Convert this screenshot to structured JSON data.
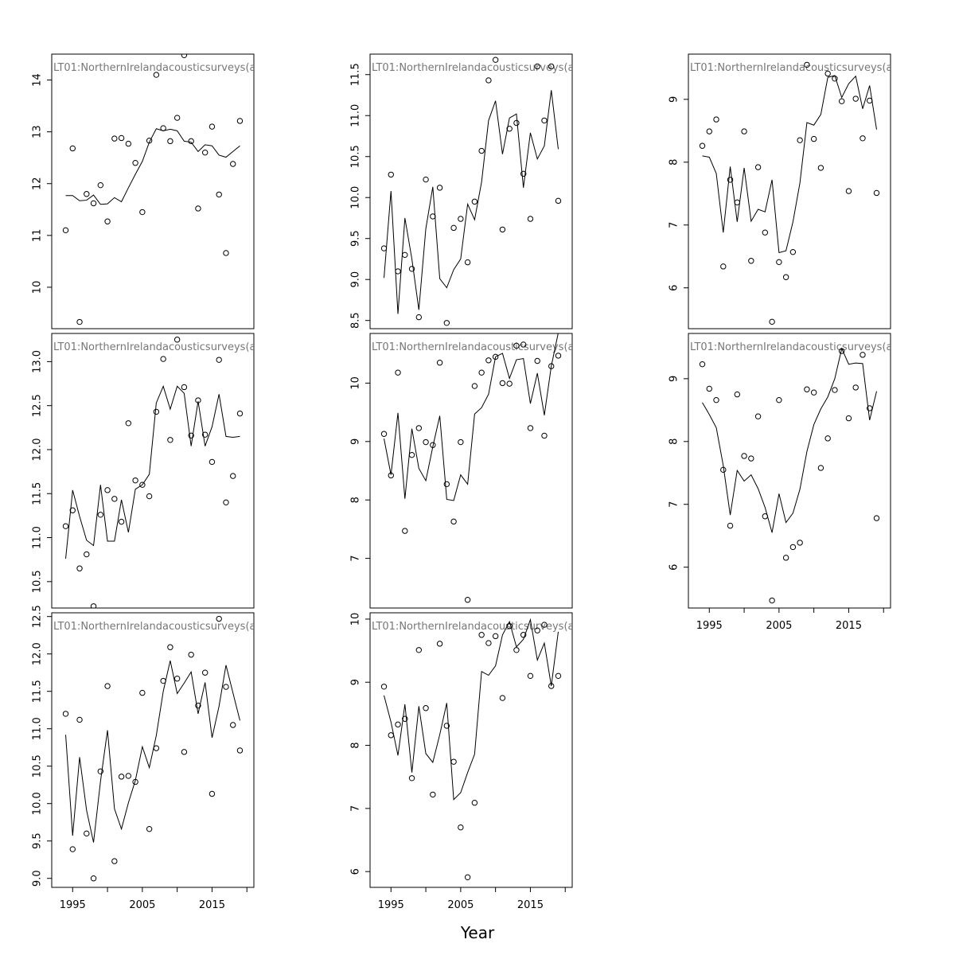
{
  "figure": {
    "xlabel": "Year"
  },
  "chart_data": [
    {
      "type": "scatter",
      "panel_title": "LT01:NorthernIrelandacousticsurveys(a",
      "xlim": [
        1992,
        2021
      ],
      "ylim": [
        9.2,
        14.5
      ],
      "yticks": [
        "10",
        "11",
        "12",
        "13",
        "14"
      ],
      "xticks": [],
      "years": [
        1994,
        1995,
        1996,
        1997,
        1998,
        1999,
        2000,
        2001,
        2002,
        2003,
        2004,
        2005,
        2006,
        2007,
        2008,
        2009,
        2010,
        2011,
        2012,
        2013,
        2014,
        2015,
        2016,
        2017,
        2018,
        2019
      ],
      "observed": [
        11.1,
        12.68,
        9.33,
        11.8,
        11.62,
        11.97,
        11.27,
        12.87,
        12.88,
        12.77,
        12.4,
        11.45,
        12.83,
        14.1,
        13.07,
        12.82,
        13.27,
        14.48,
        12.82,
        11.52,
        12.6,
        13.1,
        11.79,
        10.66,
        12.38,
        13.21
      ],
      "fitted": [
        11.77,
        11.77,
        11.67,
        11.68,
        11.78,
        11.6,
        11.61,
        11.73,
        11.65,
        11.92,
        12.18,
        12.43,
        12.8,
        13.06,
        13.02,
        13.05,
        13.02,
        12.82,
        12.8,
        12.62,
        12.75,
        12.73,
        12.55,
        12.51,
        12.62,
        12.73
      ]
    },
    {
      "type": "scatter",
      "panel_title": "LT01:NorthernIrelandacousticsurveys(a",
      "xlim": [
        1992,
        2021
      ],
      "ylim": [
        8.4,
        11.75
      ],
      "yticks": [
        "8.5",
        "9.0",
        "9.5",
        "10.0",
        "10.5",
        "11.0",
        "11.5"
      ],
      "xticks": [],
      "years": [
        1994,
        1995,
        1996,
        1997,
        1998,
        1999,
        2000,
        2001,
        2002,
        2003,
        2004,
        2005,
        2006,
        2007,
        2008,
        2009,
        2010,
        2011,
        2012,
        2013,
        2014,
        2015,
        2016,
        2017,
        2018,
        2019
      ],
      "observed": [
        9.38,
        10.28,
        9.1,
        9.3,
        9.13,
        8.54,
        10.22,
        9.77,
        10.12,
        8.47,
        9.63,
        9.74,
        9.21,
        9.95,
        10.57,
        11.43,
        11.68,
        9.61,
        10.84,
        10.91,
        10.29,
        9.74,
        11.6,
        10.94,
        11.6,
        9.96
      ],
      "fitted": [
        9.02,
        10.08,
        8.58,
        9.75,
        9.25,
        8.63,
        9.62,
        10.13,
        9.01,
        8.9,
        9.12,
        9.25,
        9.92,
        9.73,
        10.19,
        10.94,
        11.18,
        10.53,
        10.97,
        11.02,
        10.12,
        10.79,
        10.47,
        10.63,
        11.31,
        10.59
      ]
    },
    {
      "type": "scatter",
      "panel_title": "LT01:NorthernIrelandacousticsurveys(a",
      "xlim": [
        1992,
        2021
      ],
      "ylim": [
        5.35,
        9.72
      ],
      "yticks": [
        "6",
        "7",
        "8",
        "9"
      ],
      "xticks": [],
      "years": [
        1994,
        1995,
        1996,
        1997,
        1998,
        1999,
        2000,
        2001,
        2002,
        2003,
        2004,
        2005,
        2006,
        2007,
        2008,
        2009,
        2010,
        2011,
        2012,
        2013,
        2014,
        2015,
        2016,
        2017,
        2018,
        2019
      ],
      "observed": [
        8.26,
        8.49,
        8.68,
        6.34,
        7.72,
        7.36,
        8.49,
        6.43,
        7.92,
        6.88,
        5.46,
        6.41,
        6.17,
        6.57,
        8.35,
        9.55,
        8.37,
        7.91,
        9.41,
        9.33,
        8.97,
        7.54,
        9.01,
        8.38,
        8.98,
        7.51
      ],
      "fitted": [
        8.1,
        8.08,
        7.82,
        6.88,
        7.93,
        7.05,
        7.91,
        7.06,
        7.25,
        7.21,
        7.72,
        6.56,
        6.59,
        7.05,
        7.67,
        8.63,
        8.59,
        8.76,
        9.35,
        9.38,
        9.03,
        9.25,
        9.37,
        8.85,
        9.22,
        8.52
      ]
    },
    {
      "type": "scatter",
      "panel_title": "LT01:NorthernIrelandacousticsurveys(a",
      "xlim": [
        1992,
        2021
      ],
      "ylim": [
        10.2,
        13.32
      ],
      "yticks": [
        "10.5",
        "11.0",
        "11.5",
        "12.0",
        "12.5",
        "13.0"
      ],
      "xticks": [],
      "years": [
        1994,
        1995,
        1996,
        1997,
        1998,
        1999,
        2000,
        2001,
        2002,
        2003,
        2004,
        2005,
        2006,
        2007,
        2008,
        2009,
        2010,
        2011,
        2012,
        2013,
        2014,
        2015,
        2016,
        2017,
        2018,
        2019
      ],
      "observed": [
        11.13,
        11.31,
        10.65,
        10.81,
        10.22,
        11.26,
        11.54,
        11.44,
        11.18,
        12.3,
        11.65,
        11.6,
        11.47,
        12.43,
        13.03,
        12.11,
        13.25,
        12.71,
        12.16,
        12.56,
        12.17,
        11.86,
        13.02,
        11.4,
        11.7,
        12.41
      ],
      "fitted": [
        10.76,
        11.54,
        11.24,
        10.97,
        10.91,
        11.6,
        10.96,
        10.96,
        11.43,
        11.06,
        11.55,
        11.6,
        11.72,
        12.53,
        12.72,
        12.46,
        12.72,
        12.64,
        12.04,
        12.55,
        12.04,
        12.26,
        12.63,
        12.15,
        12.14,
        12.15
      ]
    },
    {
      "type": "scatter",
      "panel_title": "LT01:NorthernIrelandacousticsurveys(a",
      "xlim": [
        1992,
        2021
      ],
      "ylim": [
        6.15,
        10.85
      ],
      "yticks": [
        "7",
        "8",
        "9",
        "10"
      ],
      "xticks": [],
      "years": [
        1994,
        1995,
        1996,
        1997,
        1998,
        1999,
        2000,
        2001,
        2002,
        2003,
        2004,
        2005,
        2006,
        2007,
        2008,
        2009,
        2010,
        2011,
        2012,
        2013,
        2014,
        2015,
        2016,
        2017,
        2018,
        2019
      ],
      "observed": [
        9.13,
        8.42,
        10.18,
        7.47,
        8.77,
        9.23,
        8.99,
        8.94,
        10.35,
        8.27,
        7.63,
        8.99,
        6.29,
        9.95,
        10.18,
        10.39,
        10.45,
        10.0,
        9.99,
        10.64,
        10.66,
        9.23,
        10.38,
        9.1,
        10.29,
        10.47
      ],
      "fitted": [
        9.05,
        8.43,
        9.49,
        8.02,
        9.22,
        8.54,
        8.33,
        8.91,
        9.44,
        8.01,
        7.99,
        8.43,
        8.27,
        9.47,
        9.58,
        9.81,
        10.45,
        10.51,
        10.08,
        10.4,
        10.42,
        9.65,
        10.17,
        9.45,
        10.29,
        10.86
      ]
    },
    {
      "type": "scatter",
      "panel_title": "LT01:NorthernIrelandacousticsurveys(a",
      "xlim": [
        1992,
        2021
      ],
      "ylim": [
        5.35,
        9.72
      ],
      "yticks": [
        "6",
        "7",
        "8",
        "9"
      ],
      "xticks": [
        "1995",
        "2005",
        "2015"
      ],
      "years": [
        1994,
        1995,
        1996,
        1997,
        1998,
        1999,
        2000,
        2001,
        2002,
        2003,
        2004,
        2005,
        2006,
        2007,
        2008,
        2009,
        2010,
        2011,
        2012,
        2013,
        2014,
        2015,
        2016,
        2017,
        2018,
        2019
      ],
      "observed": [
        9.23,
        8.84,
        8.66,
        7.55,
        6.66,
        8.75,
        7.77,
        7.73,
        8.4,
        6.81,
        5.47,
        8.66,
        6.15,
        6.32,
        6.39,
        8.83,
        8.78,
        7.58,
        8.05,
        8.82,
        9.44,
        8.37,
        8.86,
        9.38,
        8.53,
        6.78
      ],
      "fitted": [
        8.62,
        8.43,
        8.22,
        7.62,
        6.83,
        7.54,
        7.37,
        7.47,
        7.25,
        6.95,
        6.55,
        7.17,
        6.71,
        6.86,
        7.24,
        7.84,
        8.27,
        8.52,
        8.71,
        9.0,
        9.48,
        9.23,
        9.25,
        9.24,
        8.34,
        8.8
      ]
    },
    {
      "type": "scatter",
      "panel_title": "LT01:NorthernIrelandacousticsurveys(a",
      "xlim": [
        1992,
        2021
      ],
      "ylim": [
        8.88,
        12.55
      ],
      "yticks": [
        "9.0",
        "9.5",
        "10.0",
        "10.5",
        "11.0",
        "11.5",
        "12.0",
        "12.5"
      ],
      "xticks": [
        "1995",
        "2005",
        "2015"
      ],
      "years": [
        1994,
        1995,
        1996,
        1997,
        1998,
        1999,
        2000,
        2001,
        2002,
        2003,
        2004,
        2005,
        2006,
        2007,
        2008,
        2009,
        2010,
        2011,
        2012,
        2013,
        2014,
        2015,
        2016,
        2017,
        2018,
        2019
      ],
      "observed": [
        11.2,
        9.39,
        11.12,
        9.6,
        9.0,
        10.43,
        11.57,
        9.23,
        10.36,
        10.37,
        10.29,
        11.48,
        9.66,
        10.74,
        11.64,
        12.09,
        11.67,
        10.69,
        11.99,
        11.31,
        11.75,
        10.13,
        12.47,
        11.56,
        11.05,
        10.71
      ],
      "fitted": [
        10.92,
        9.57,
        10.62,
        9.91,
        9.48,
        10.3,
        10.98,
        9.93,
        9.66,
        10.01,
        10.31,
        10.76,
        10.48,
        10.91,
        11.5,
        11.91,
        11.47,
        11.61,
        11.76,
        11.2,
        11.62,
        10.88,
        11.3,
        11.85,
        11.48,
        11.11
      ]
    },
    {
      "type": "scatter",
      "panel_title": "LT01:NorthernIrelandacousticsurveys(a",
      "xlim": [
        1992,
        2021
      ],
      "ylim": [
        5.75,
        10.1
      ],
      "yticks": [
        "6",
        "7",
        "8",
        "9",
        "10"
      ],
      "xticks": [
        "1995",
        "2005",
        "2015"
      ],
      "years": [
        1994,
        1995,
        1996,
        1997,
        1998,
        1999,
        2000,
        2001,
        2002,
        2003,
        2004,
        2005,
        2006,
        2007,
        2008,
        2009,
        2010,
        2011,
        2012,
        2013,
        2014,
        2015,
        2016,
        2017,
        2018,
        2019
      ],
      "observed": [
        8.93,
        8.16,
        8.33,
        8.42,
        7.48,
        9.51,
        8.59,
        7.22,
        9.61,
        8.31,
        7.74,
        6.7,
        5.91,
        7.09,
        9.75,
        9.62,
        9.73,
        8.75,
        9.89,
        9.51,
        9.75,
        9.1,
        9.82,
        9.91,
        8.94,
        9.1
      ],
      "fitted": [
        8.79,
        8.37,
        7.84,
        8.65,
        7.57,
        8.62,
        7.87,
        7.73,
        8.17,
        8.67,
        7.14,
        7.25,
        7.57,
        7.86,
        9.17,
        9.11,
        9.26,
        9.75,
        9.96,
        9.56,
        9.68,
        9.99,
        9.35,
        9.62,
        8.94,
        9.8
      ]
    }
  ]
}
